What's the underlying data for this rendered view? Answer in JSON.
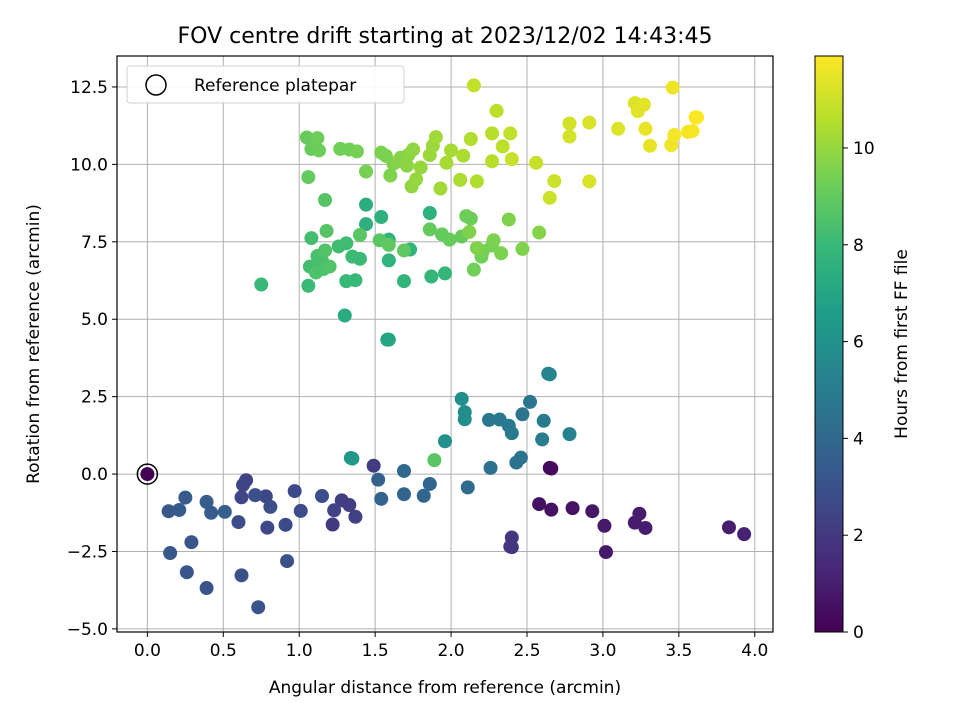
{
  "chart_data": {
    "type": "scatter",
    "title": "FOV centre drift starting at 2023/12/02 14:43:45",
    "xlabel": "Angular distance from reference (arcmin)",
    "ylabel": "Rotation from reference (arcmin)",
    "xlim": [
      -0.2,
      4.12
    ],
    "ylim": [
      -5.1,
      13.5
    ],
    "xticks": [
      0.0,
      0.5,
      1.0,
      1.5,
      2.0,
      2.5,
      3.0,
      3.5,
      4.0
    ],
    "xtick_labels": [
      "0.0",
      "0.5",
      "1.0",
      "1.5",
      "2.0",
      "2.5",
      "3.0",
      "3.5",
      "4.0"
    ],
    "yticks": [
      -5.0,
      -2.5,
      0.0,
      2.5,
      5.0,
      7.5,
      10.0,
      12.5
    ],
    "ytick_labels": [
      "−5.0",
      "−2.5",
      "0.0",
      "2.5",
      "5.0",
      "7.5",
      "10.0",
      "12.5"
    ],
    "grid": true,
    "legend": {
      "placement": "top-left",
      "entries": [
        "Reference platepar"
      ]
    },
    "reference_point": {
      "x": 0.0,
      "y": 0.0,
      "c": 0.0
    },
    "colorbar": {
      "label": "Hours from first FF file",
      "range": [
        0,
        11.9
      ],
      "ticks": [
        0,
        2,
        4,
        6,
        8,
        10
      ],
      "tick_labels": [
        "0",
        "2",
        "4",
        "6",
        "8",
        "10"
      ],
      "colormap": "viridis",
      "colormap_stops": [
        "#440154",
        "#482878",
        "#3e4989",
        "#31688e",
        "#26828e",
        "#1f9e89",
        "#35b779",
        "#6ece58",
        "#b5de2b",
        "#fde725"
      ]
    },
    "points": [
      {
        "x": 2.65,
        "y": 0.2,
        "c": 0.3
      },
      {
        "x": 2.66,
        "y": 0.18,
        "c": 0.3
      },
      {
        "x": 2.58,
        "y": -0.97,
        "c": 0.5
      },
      {
        "x": 2.66,
        "y": -1.15,
        "c": 0.6
      },
      {
        "x": 2.8,
        "y": -1.1,
        "c": 0.6
      },
      {
        "x": 2.93,
        "y": -1.2,
        "c": 0.7
      },
      {
        "x": 3.01,
        "y": -1.67,
        "c": 0.8
      },
      {
        "x": 3.02,
        "y": -2.52,
        "c": 0.8
      },
      {
        "x": 3.21,
        "y": -1.57,
        "c": 0.9
      },
      {
        "x": 3.24,
        "y": -1.28,
        "c": 0.9
      },
      {
        "x": 3.28,
        "y": -1.74,
        "c": 1.0
      },
      {
        "x": 3.83,
        "y": -1.72,
        "c": 1.0
      },
      {
        "x": 3.93,
        "y": -1.94,
        "c": 1.1
      },
      {
        "x": 2.4,
        "y": -2.05,
        "c": 1.9
      },
      {
        "x": 2.39,
        "y": -2.34,
        "c": 1.9
      },
      {
        "x": 2.4,
        "y": -2.36,
        "c": 1.9
      },
      {
        "x": 1.22,
        "y": -1.63,
        "c": 2.0
      },
      {
        "x": 1.49,
        "y": 0.27,
        "c": 2.1
      },
      {
        "x": 1.28,
        "y": -0.85,
        "c": 2.2
      },
      {
        "x": 1.33,
        "y": -1.0,
        "c": 2.2
      },
      {
        "x": 1.37,
        "y": -1.38,
        "c": 2.3
      },
      {
        "x": 1.23,
        "y": -1.17,
        "c": 2.4
      },
      {
        "x": 0.65,
        "y": -0.2,
        "c": 2.4
      },
      {
        "x": 0.63,
        "y": -0.35,
        "c": 2.5
      },
      {
        "x": 0.62,
        "y": -0.75,
        "c": 2.5
      },
      {
        "x": 0.78,
        "y": -0.72,
        "c": 2.6
      },
      {
        "x": 0.79,
        "y": -1.73,
        "c": 2.6
      },
      {
        "x": 0.91,
        "y": -1.64,
        "c": 2.7
      },
      {
        "x": 0.97,
        "y": -0.55,
        "c": 2.7
      },
      {
        "x": 1.01,
        "y": -1.19,
        "c": 2.8
      },
      {
        "x": 1.15,
        "y": -0.71,
        "c": 2.8
      },
      {
        "x": 0.6,
        "y": -1.55,
        "c": 2.8
      },
      {
        "x": 0.71,
        "y": -0.68,
        "c": 2.9
      },
      {
        "x": 0.81,
        "y": -1.06,
        "c": 2.9
      },
      {
        "x": 0.92,
        "y": -2.81,
        "c": 3.0
      },
      {
        "x": 0.62,
        "y": -3.27,
        "c": 3.0
      },
      {
        "x": 0.73,
        "y": -4.3,
        "c": 3.1
      },
      {
        "x": 0.39,
        "y": -3.68,
        "c": 3.1
      },
      {
        "x": 0.26,
        "y": -3.17,
        "c": 3.2
      },
      {
        "x": 0.29,
        "y": -2.2,
        "c": 3.2
      },
      {
        "x": 0.15,
        "y": -2.55,
        "c": 3.3
      },
      {
        "x": 0.14,
        "y": -1.2,
        "c": 3.3
      },
      {
        "x": 0.21,
        "y": -1.16,
        "c": 3.4
      },
      {
        "x": 0.25,
        "y": -0.76,
        "c": 3.4
      },
      {
        "x": 0.39,
        "y": -0.9,
        "c": 3.5
      },
      {
        "x": 0.42,
        "y": -1.25,
        "c": 3.5
      },
      {
        "x": 0.51,
        "y": -1.22,
        "c": 3.6
      },
      {
        "x": 1.52,
        "y": -0.18,
        "c": 3.7
      },
      {
        "x": 1.54,
        "y": -0.8,
        "c": 3.8
      },
      {
        "x": 1.69,
        "y": -0.65,
        "c": 3.8
      },
      {
        "x": 1.82,
        "y": -0.7,
        "c": 3.9
      },
      {
        "x": 1.86,
        "y": -0.32,
        "c": 3.9
      },
      {
        "x": 1.69,
        "y": 0.1,
        "c": 4.0
      },
      {
        "x": 2.11,
        "y": -0.43,
        "c": 4.1
      },
      {
        "x": 2.26,
        "y": 0.2,
        "c": 4.4
      },
      {
        "x": 2.43,
        "y": 0.37,
        "c": 4.5
      },
      {
        "x": 2.46,
        "y": 0.53,
        "c": 4.6
      },
      {
        "x": 2.47,
        "y": 1.93,
        "c": 4.6
      },
      {
        "x": 2.52,
        "y": 2.33,
        "c": 4.7
      },
      {
        "x": 2.25,
        "y": 1.75,
        "c": 4.8
      },
      {
        "x": 2.32,
        "y": 1.76,
        "c": 4.8
      },
      {
        "x": 2.38,
        "y": 1.56,
        "c": 4.9
      },
      {
        "x": 2.4,
        "y": 1.32,
        "c": 4.9
      },
      {
        "x": 2.61,
        "y": 1.72,
        "c": 5.0
      },
      {
        "x": 2.6,
        "y": 1.12,
        "c": 5.1
      },
      {
        "x": 2.78,
        "y": 1.29,
        "c": 5.2
      },
      {
        "x": 2.64,
        "y": 3.24,
        "c": 5.4
      },
      {
        "x": 2.65,
        "y": 3.22,
        "c": 5.4
      },
      {
        "x": 2.09,
        "y": 2.0,
        "c": 5.8
      },
      {
        "x": 2.09,
        "y": 1.77,
        "c": 5.9
      },
      {
        "x": 2.07,
        "y": 2.43,
        "c": 5.9
      },
      {
        "x": 1.96,
        "y": 1.06,
        "c": 6.0
      },
      {
        "x": 1.34,
        "y": 0.52,
        "c": 6.3
      },
      {
        "x": 1.35,
        "y": 0.5,
        "c": 6.3
      },
      {
        "x": 1.58,
        "y": 4.34,
        "c": 7.0
      },
      {
        "x": 1.59,
        "y": 4.34,
        "c": 7.0
      },
      {
        "x": 1.3,
        "y": 5.12,
        "c": 7.3
      },
      {
        "x": 1.44,
        "y": 8.7,
        "c": 7.4
      },
      {
        "x": 1.44,
        "y": 8.07,
        "c": 7.5
      },
      {
        "x": 1.54,
        "y": 8.3,
        "c": 7.5
      },
      {
        "x": 1.86,
        "y": 8.43,
        "c": 7.6
      },
      {
        "x": 1.59,
        "y": 7.57,
        "c": 7.7
      },
      {
        "x": 1.59,
        "y": 6.9,
        "c": 7.7
      },
      {
        "x": 1.73,
        "y": 7.25,
        "c": 7.8
      },
      {
        "x": 1.69,
        "y": 6.23,
        "c": 7.8
      },
      {
        "x": 1.87,
        "y": 6.38,
        "c": 7.9
      },
      {
        "x": 1.96,
        "y": 6.48,
        "c": 7.9
      },
      {
        "x": 1.31,
        "y": 6.23,
        "c": 8.0
      },
      {
        "x": 1.37,
        "y": 6.26,
        "c": 8.0
      },
      {
        "x": 1.35,
        "y": 7.02,
        "c": 8.1
      },
      {
        "x": 1.4,
        "y": 6.95,
        "c": 8.1
      },
      {
        "x": 1.31,
        "y": 7.45,
        "c": 8.2
      },
      {
        "x": 1.26,
        "y": 7.35,
        "c": 8.2
      },
      {
        "x": 0.75,
        "y": 6.12,
        "c": 8.0
      },
      {
        "x": 1.06,
        "y": 6.08,
        "c": 8.1
      },
      {
        "x": 1.07,
        "y": 6.7,
        "c": 8.3
      },
      {
        "x": 1.08,
        "y": 7.62,
        "c": 8.3
      },
      {
        "x": 1.12,
        "y": 7.04,
        "c": 8.4
      },
      {
        "x": 1.15,
        "y": 6.88,
        "c": 8.4
      },
      {
        "x": 1.11,
        "y": 6.51,
        "c": 8.5
      },
      {
        "x": 1.16,
        "y": 6.62,
        "c": 8.5
      },
      {
        "x": 1.2,
        "y": 6.7,
        "c": 8.6
      },
      {
        "x": 1.17,
        "y": 7.22,
        "c": 8.6
      },
      {
        "x": 1.18,
        "y": 7.85,
        "c": 8.7
      },
      {
        "x": 1.17,
        "y": 8.85,
        "c": 8.7
      },
      {
        "x": 1.4,
        "y": 7.72,
        "c": 8.8
      },
      {
        "x": 1.53,
        "y": 7.55,
        "c": 8.8
      },
      {
        "x": 1.59,
        "y": 7.4,
        "c": 8.9
      },
      {
        "x": 1.69,
        "y": 7.22,
        "c": 8.9
      },
      {
        "x": 1.86,
        "y": 7.9,
        "c": 9.0
      },
      {
        "x": 1.94,
        "y": 7.74,
        "c": 9.0
      },
      {
        "x": 1.99,
        "y": 7.57,
        "c": 9.1
      },
      {
        "x": 2.07,
        "y": 7.67,
        "c": 9.1
      },
      {
        "x": 2.1,
        "y": 8.33,
        "c": 9.2
      },
      {
        "x": 2.13,
        "y": 8.25,
        "c": 9.2
      },
      {
        "x": 2.15,
        "y": 6.6,
        "c": 9.3
      },
      {
        "x": 2.2,
        "y": 7.02,
        "c": 9.3
      },
      {
        "x": 2.21,
        "y": 7.2,
        "c": 9.4
      },
      {
        "x": 2.27,
        "y": 7.38,
        "c": 9.4
      },
      {
        "x": 2.28,
        "y": 7.55,
        "c": 9.5
      },
      {
        "x": 2.33,
        "y": 7.13,
        "c": 9.5
      },
      {
        "x": 2.38,
        "y": 8.22,
        "c": 9.6
      },
      {
        "x": 2.47,
        "y": 7.27,
        "c": 9.6
      },
      {
        "x": 2.58,
        "y": 7.8,
        "c": 9.7
      },
      {
        "x": 2.12,
        "y": 7.82,
        "c": 9.6
      },
      {
        "x": 2.17,
        "y": 7.3,
        "c": 9.6
      },
      {
        "x": 1.06,
        "y": 9.59,
        "c": 9.0
      },
      {
        "x": 1.05,
        "y": 10.87,
        "c": 9.1
      },
      {
        "x": 1.08,
        "y": 10.5,
        "c": 9.1
      },
      {
        "x": 1.12,
        "y": 10.85,
        "c": 9.2
      },
      {
        "x": 1.13,
        "y": 10.45,
        "c": 9.2
      },
      {
        "x": 1.27,
        "y": 10.5,
        "c": 9.3
      },
      {
        "x": 1.33,
        "y": 10.48,
        "c": 9.3
      },
      {
        "x": 1.38,
        "y": 10.42,
        "c": 9.4
      },
      {
        "x": 1.44,
        "y": 9.77,
        "c": 9.4
      },
      {
        "x": 1.54,
        "y": 10.38,
        "c": 9.5
      },
      {
        "x": 1.57,
        "y": 10.28,
        "c": 9.5
      },
      {
        "x": 1.6,
        "y": 9.64,
        "c": 9.6
      },
      {
        "x": 1.62,
        "y": 10.02,
        "c": 9.6
      },
      {
        "x": 1.65,
        "y": 10.1,
        "c": 9.7
      },
      {
        "x": 1.67,
        "y": 10.22,
        "c": 9.7
      },
      {
        "x": 1.71,
        "y": 9.96,
        "c": 9.8
      },
      {
        "x": 1.72,
        "y": 10.31,
        "c": 9.8
      },
      {
        "x": 1.75,
        "y": 10.48,
        "c": 9.9
      },
      {
        "x": 1.74,
        "y": 9.29,
        "c": 9.9
      },
      {
        "x": 1.77,
        "y": 9.52,
        "c": 10.0
      },
      {
        "x": 1.8,
        "y": 9.9,
        "c": 10.0
      },
      {
        "x": 1.86,
        "y": 10.3,
        "c": 10.1
      },
      {
        "x": 1.88,
        "y": 10.6,
        "c": 10.1
      },
      {
        "x": 1.9,
        "y": 10.88,
        "c": 10.2
      },
      {
        "x": 1.93,
        "y": 9.22,
        "c": 10.2
      },
      {
        "x": 1.97,
        "y": 10.05,
        "c": 10.3
      },
      {
        "x": 2.0,
        "y": 10.45,
        "c": 10.3
      },
      {
        "x": 2.06,
        "y": 9.5,
        "c": 10.4
      },
      {
        "x": 2.08,
        "y": 10.28,
        "c": 10.4
      },
      {
        "x": 2.13,
        "y": 10.82,
        "c": 10.5
      },
      {
        "x": 2.17,
        "y": 9.45,
        "c": 10.5
      },
      {
        "x": 2.27,
        "y": 10.1,
        "c": 10.6
      },
      {
        "x": 2.27,
        "y": 11.0,
        "c": 10.6
      },
      {
        "x": 2.3,
        "y": 11.73,
        "c": 10.7
      },
      {
        "x": 2.34,
        "y": 10.58,
        "c": 10.7
      },
      {
        "x": 2.39,
        "y": 11.0,
        "c": 10.8
      },
      {
        "x": 2.15,
        "y": 12.55,
        "c": 10.8
      },
      {
        "x": 2.4,
        "y": 10.17,
        "c": 10.9
      },
      {
        "x": 2.56,
        "y": 10.05,
        "c": 10.9
      },
      {
        "x": 2.65,
        "y": 8.92,
        "c": 11.0
      },
      {
        "x": 2.68,
        "y": 9.46,
        "c": 11.0
      },
      {
        "x": 2.78,
        "y": 10.9,
        "c": 11.1
      },
      {
        "x": 2.78,
        "y": 11.32,
        "c": 11.1
      },
      {
        "x": 2.91,
        "y": 9.45,
        "c": 11.2
      },
      {
        "x": 2.91,
        "y": 11.35,
        "c": 11.2
      },
      {
        "x": 3.1,
        "y": 11.15,
        "c": 11.3
      },
      {
        "x": 3.21,
        "y": 11.98,
        "c": 11.3
      },
      {
        "x": 3.23,
        "y": 11.72,
        "c": 11.4
      },
      {
        "x": 3.27,
        "y": 11.93,
        "c": 11.4
      },
      {
        "x": 3.28,
        "y": 11.15,
        "c": 11.5
      },
      {
        "x": 3.31,
        "y": 10.6,
        "c": 11.5
      },
      {
        "x": 3.45,
        "y": 10.62,
        "c": 11.6
      },
      {
        "x": 3.46,
        "y": 12.48,
        "c": 11.6
      },
      {
        "x": 3.47,
        "y": 10.95,
        "c": 11.7
      },
      {
        "x": 3.56,
        "y": 11.05,
        "c": 11.7
      },
      {
        "x": 3.59,
        "y": 11.08,
        "c": 11.8
      },
      {
        "x": 3.61,
        "y": 11.52,
        "c": 11.8
      },
      {
        "x": 3.62,
        "y": 11.52,
        "c": 11.9
      },
      {
        "x": 1.89,
        "y": 0.45,
        "c": 8.8
      }
    ]
  }
}
